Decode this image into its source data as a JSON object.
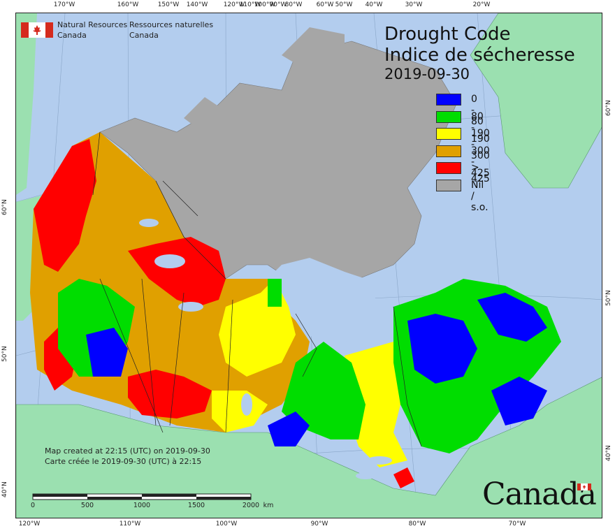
{
  "title": {
    "en": "Drought Code",
    "fr": "Indice de sécheresse",
    "date": "2019-09-30"
  },
  "legend": [
    {
      "label": "0 - 80",
      "color": "#0000ff"
    },
    {
      "label": "80 - 190",
      "color": "#00dd00"
    },
    {
      "label": "190 - 300",
      "color": "#ffff00"
    },
    {
      "label": "300 - 425",
      "color": "#e0a000"
    },
    {
      "label": "> 425",
      "color": "#ff0000"
    },
    {
      "label": "Nil / s.o.",
      "color": "#a6a6a6"
    }
  ],
  "agency": {
    "en_line1": "Natural Resources",
    "en_line2": "Canada",
    "fr_line1": "Ressources naturelles",
    "fr_line2": "Canada"
  },
  "credit": {
    "en": "Map created at 22:15 (UTC) on 2019-09-30",
    "fr": "Carte créée le 2019-09-30 (UTC) à 22:15"
  },
  "scale": {
    "labels": [
      "0",
      "500",
      "1000",
      "1500",
      "2000"
    ],
    "unit": "km"
  },
  "wordmark": "Canada",
  "graticule": {
    "top": [
      "170°W",
      "160°W",
      "150°W",
      "140°W",
      "120°W",
      "110°W",
      "100°W",
      "90°W",
      "80°W",
      "60°W",
      "50°W",
      "40°W",
      "30°W",
      "20°W"
    ],
    "bottom": [
      "120°W",
      "110°W",
      "100°W",
      "90°W",
      "80°W",
      "70°W"
    ],
    "left": [
      "60°N",
      "50°N",
      "40°N"
    ],
    "right": [
      "60°N",
      "50°N",
      "40°N"
    ]
  },
  "colors": {
    "ocean": "#b3cdee",
    "foreign_land": "#9be0b0",
    "nil": "#a6a6a6"
  }
}
